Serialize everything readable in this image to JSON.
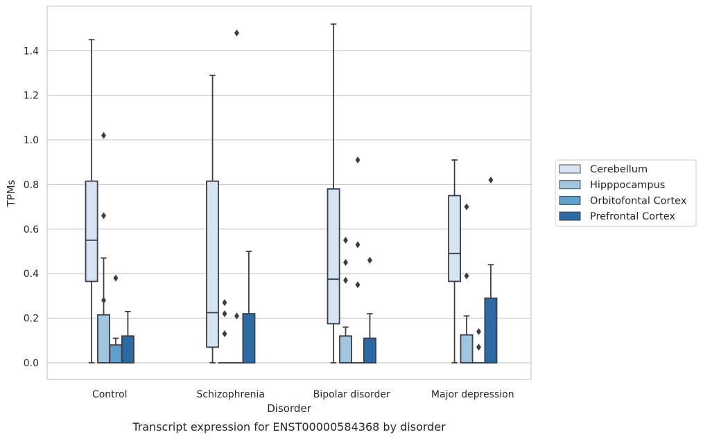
{
  "chart_data": {
    "type": "boxplot",
    "title": "",
    "caption": "Transcript expression for ENST00000584368 by disorder",
    "xlabel": "Disorder",
    "ylabel": "TPMs",
    "ylim": [
      -0.075,
      1.6
    ],
    "yticks": [
      0.0,
      0.2,
      0.4,
      0.6,
      0.8,
      1.0,
      1.2,
      1.4
    ],
    "ytick_labels": [
      "0.0",
      "0.2",
      "0.4",
      "0.6",
      "0.8",
      "1.0",
      "1.2",
      "1.4"
    ],
    "grid": "horizontal",
    "legend_position": "right",
    "categories": [
      "Control",
      "Schizophrenia",
      "Bipolar disorder",
      "Major depression"
    ],
    "series": [
      {
        "name": "Cerebellum",
        "color": "#d6e4f2",
        "boxes": [
          {
            "whislo": 0.0,
            "q1": 0.365,
            "med": 0.55,
            "q3": 0.815,
            "whishi": 1.45,
            "fliers": []
          },
          {
            "whislo": 0.0,
            "q1": 0.07,
            "med": 0.225,
            "q3": 0.815,
            "whishi": 1.29,
            "fliers": []
          },
          {
            "whislo": 0.0,
            "q1": 0.175,
            "med": 0.375,
            "q3": 0.78,
            "whishi": 1.52,
            "fliers": []
          },
          {
            "whislo": 0.0,
            "q1": 0.365,
            "med": 0.49,
            "q3": 0.75,
            "whishi": 0.91,
            "fliers": []
          }
        ]
      },
      {
        "name": "Hipppocampus",
        "color": "#9fc5df",
        "boxes": [
          {
            "whislo": 0.0,
            "q1": 0.0,
            "med": 0.0,
            "q3": 0.215,
            "whishi": 0.47,
            "fliers": [
              1.02,
              0.66,
              0.28
            ]
          },
          {
            "whislo": 0.0,
            "q1": 0.0,
            "med": 0.0,
            "q3": 0.0,
            "whishi": 0.0,
            "fliers": [
              0.27,
              0.22,
              0.13
            ]
          },
          {
            "whislo": 0.0,
            "q1": 0.0,
            "med": 0.0,
            "q3": 0.12,
            "whishi": 0.16,
            "fliers": [
              0.55,
              0.45,
              0.37
            ]
          },
          {
            "whislo": 0.0,
            "q1": 0.0,
            "med": 0.0,
            "q3": 0.125,
            "whishi": 0.21,
            "fliers": [
              0.7,
              0.39
            ]
          }
        ]
      },
      {
        "name": "Orbitofontal Cortex",
        "color": "#5fa0cb",
        "boxes": [
          {
            "whislo": 0.0,
            "q1": 0.0,
            "med": 0.0,
            "q3": 0.08,
            "whishi": 0.11,
            "fliers": [
              0.38
            ]
          },
          {
            "whislo": 0.0,
            "q1": 0.0,
            "med": 0.0,
            "q3": 0.0,
            "whishi": 0.0,
            "fliers": [
              1.48,
              0.21
            ]
          },
          {
            "whislo": 0.0,
            "q1": 0.0,
            "med": 0.0,
            "q3": 0.0,
            "whishi": 0.0,
            "fliers": [
              0.91,
              0.53,
              0.35
            ]
          },
          {
            "whislo": 0.0,
            "q1": 0.0,
            "med": 0.0,
            "q3": 0.0,
            "whishi": 0.0,
            "fliers": [
              0.14,
              0.07
            ]
          }
        ]
      },
      {
        "name": "Prefrontal Cortex",
        "color": "#2b6aa5",
        "boxes": [
          {
            "whislo": 0.0,
            "q1": 0.0,
            "med": 0.0,
            "q3": 0.12,
            "whishi": 0.23,
            "fliers": []
          },
          {
            "whislo": 0.0,
            "q1": 0.0,
            "med": 0.0,
            "q3": 0.22,
            "whishi": 0.5,
            "fliers": []
          },
          {
            "whislo": 0.0,
            "q1": 0.0,
            "med": 0.0,
            "q3": 0.11,
            "whishi": 0.22,
            "fliers": [
              0.46
            ]
          },
          {
            "whislo": 0.0,
            "q1": 0.0,
            "med": 0.0,
            "q3": 0.29,
            "whishi": 0.44,
            "fliers": [
              0.82
            ]
          }
        ]
      }
    ]
  }
}
